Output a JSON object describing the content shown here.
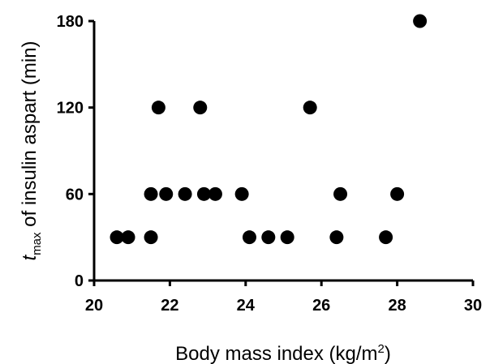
{
  "chart_data": {
    "type": "scatter",
    "xlabel": {
      "text": "Body mass index (kg/m",
      "superscript": "2",
      "suffix": ")"
    },
    "ylabel": {
      "italic": "t",
      "subscript": "max",
      "rest": " of insulin aspart (min)"
    },
    "xlim": [
      20,
      30
    ],
    "ylim": [
      0,
      180
    ],
    "xticks": [
      "20",
      "22",
      "24",
      "26",
      "28",
      "30"
    ],
    "yticks": [
      "0",
      "60",
      "120",
      "180"
    ],
    "grid": false,
    "marker_color": "#000000",
    "series": [
      {
        "points": [
          [
            20.6,
            30
          ],
          [
            20.9,
            30
          ],
          [
            21.5,
            30
          ],
          [
            21.5,
            60
          ],
          [
            21.7,
            120
          ],
          [
            21.9,
            60
          ],
          [
            22.4,
            60
          ],
          [
            22.8,
            120
          ],
          [
            22.9,
            60
          ],
          [
            23.2,
            60
          ],
          [
            23.9,
            60
          ],
          [
            24.1,
            30
          ],
          [
            24.6,
            30
          ],
          [
            25.1,
            30
          ],
          [
            25.7,
            120
          ],
          [
            26.4,
            30
          ],
          [
            26.5,
            60
          ],
          [
            27.7,
            30
          ],
          [
            28.0,
            60
          ],
          [
            28.6,
            180
          ]
        ]
      }
    ]
  }
}
